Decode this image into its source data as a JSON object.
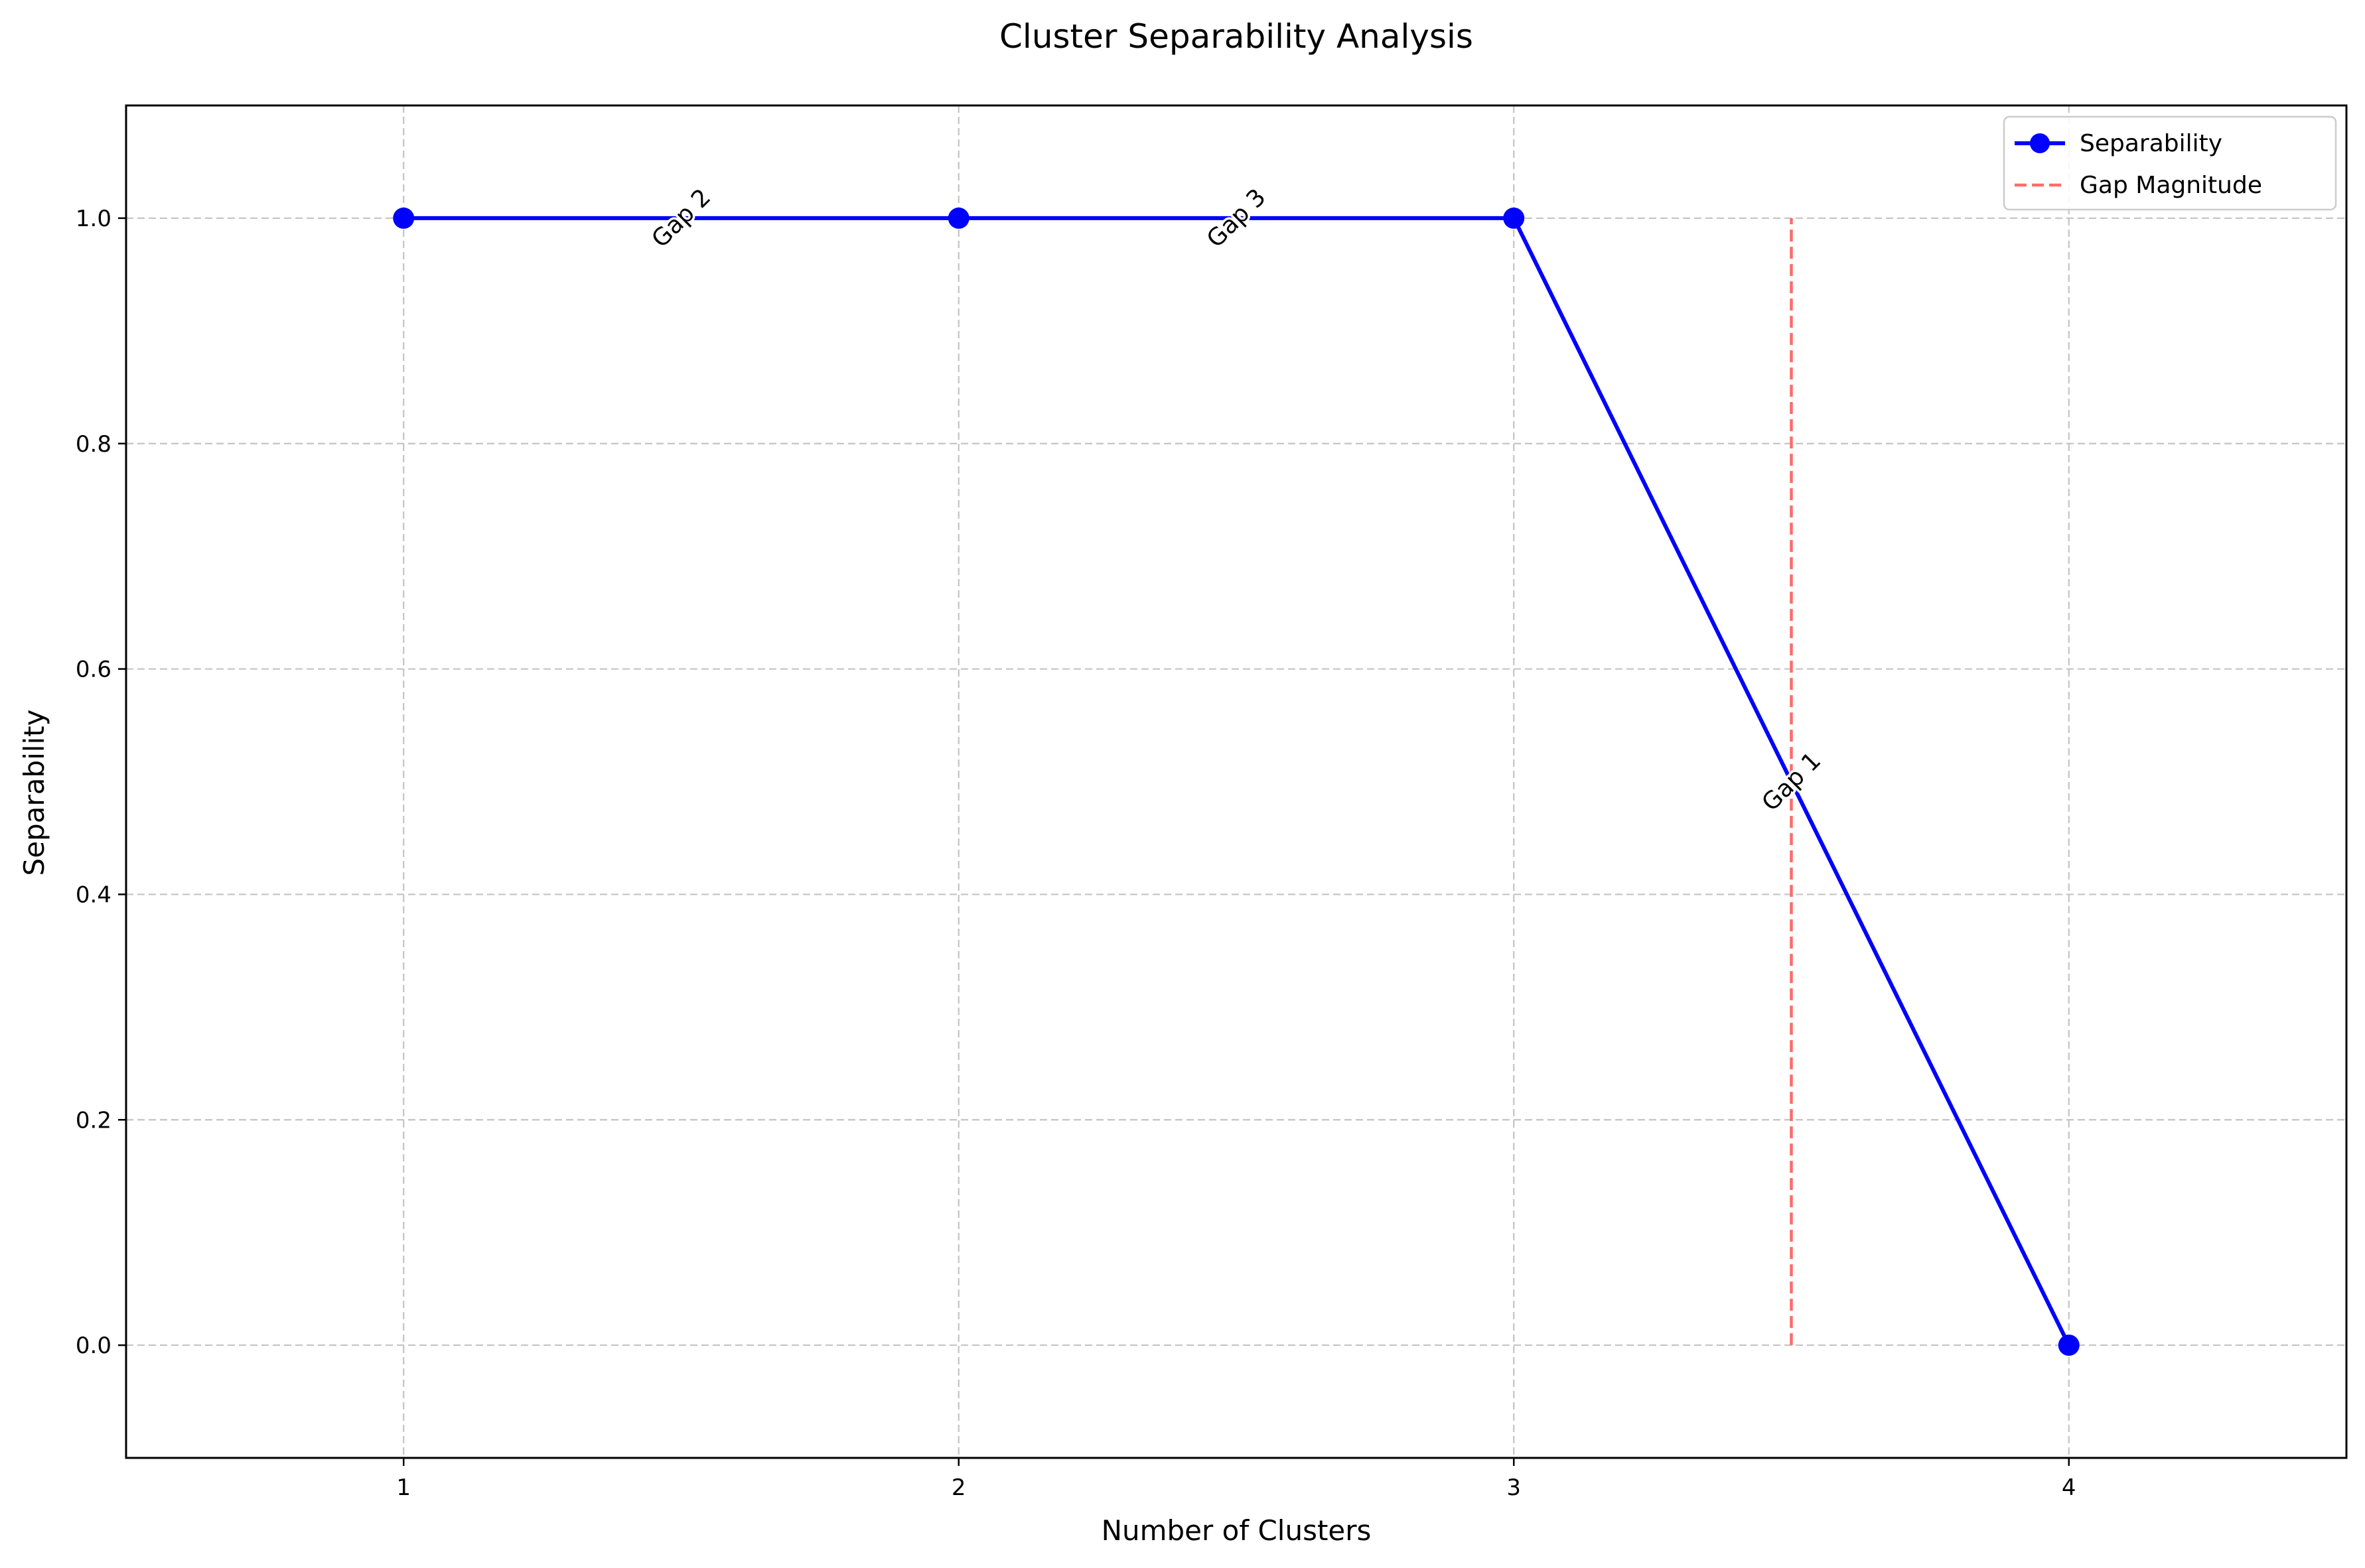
{
  "chart_data": {
    "type": "line",
    "title": "Cluster Separability Analysis",
    "xlabel": "Number of Clusters",
    "ylabel": "Separability",
    "xlim": [
      0.5,
      4.5
    ],
    "ylim": [
      -0.1,
      1.1
    ],
    "x_ticks": [
      1,
      2,
      3,
      4
    ],
    "y_ticks": [
      0.0,
      0.2,
      0.4,
      0.6,
      0.8,
      1.0
    ],
    "grid": true,
    "legend_position": "top-right",
    "series": [
      {
        "name": "Separability",
        "color": "#0000ff",
        "marker": "circle",
        "x": [
          1,
          2,
          3,
          4
        ],
        "y": [
          1.0,
          1.0,
          1.0,
          0.0
        ]
      }
    ],
    "gap_lines": {
      "name": "Gap Magnitude",
      "color": "#ff6b6b",
      "style": "dashed",
      "lines": [
        {
          "x": 3.5,
          "y_from": 0.0,
          "y_to": 1.0
        }
      ]
    },
    "annotations": [
      {
        "text": "Gap 2",
        "x": 1.5,
        "y": 1.0
      },
      {
        "text": "Gap 3",
        "x": 2.5,
        "y": 1.0
      },
      {
        "text": "Gap 1",
        "x": 3.5,
        "y": 0.5
      }
    ]
  }
}
